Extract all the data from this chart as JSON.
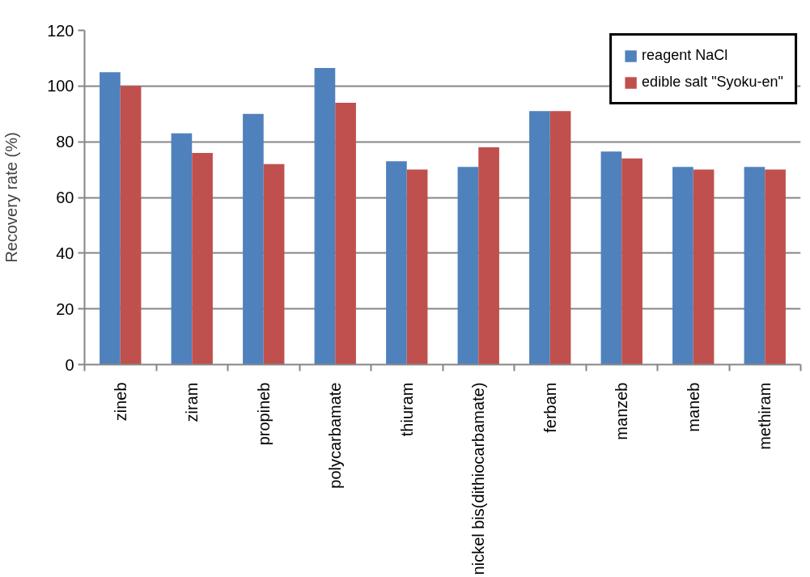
{
  "chart_data": {
    "type": "bar",
    "ylabel": "Recovery rate (%)",
    "categories": [
      "zineb",
      "ziram",
      "propineb",
      "polycarbamate",
      "thiuram",
      "nickel bis(dithiocarbamate)",
      "ferbam",
      "manzeb",
      "maneb",
      "methiram"
    ],
    "series": [
      {
        "name": "reagent NaCl",
        "color": "#4f81bd",
        "values": [
          105,
          83,
          90,
          106.5,
          73,
          71,
          91,
          76.5,
          71,
          71
        ]
      },
      {
        "name": "edible salt \"Syoku-en\"",
        "color": "#c0504d",
        "values": [
          100,
          76,
          72,
          94,
          70,
          78,
          91,
          74,
          70,
          70
        ]
      }
    ],
    "ylim": [
      0,
      120
    ],
    "yticks": [
      0,
      20,
      40,
      60,
      80,
      100,
      120
    ],
    "grid": "y",
    "legend": "top right"
  }
}
